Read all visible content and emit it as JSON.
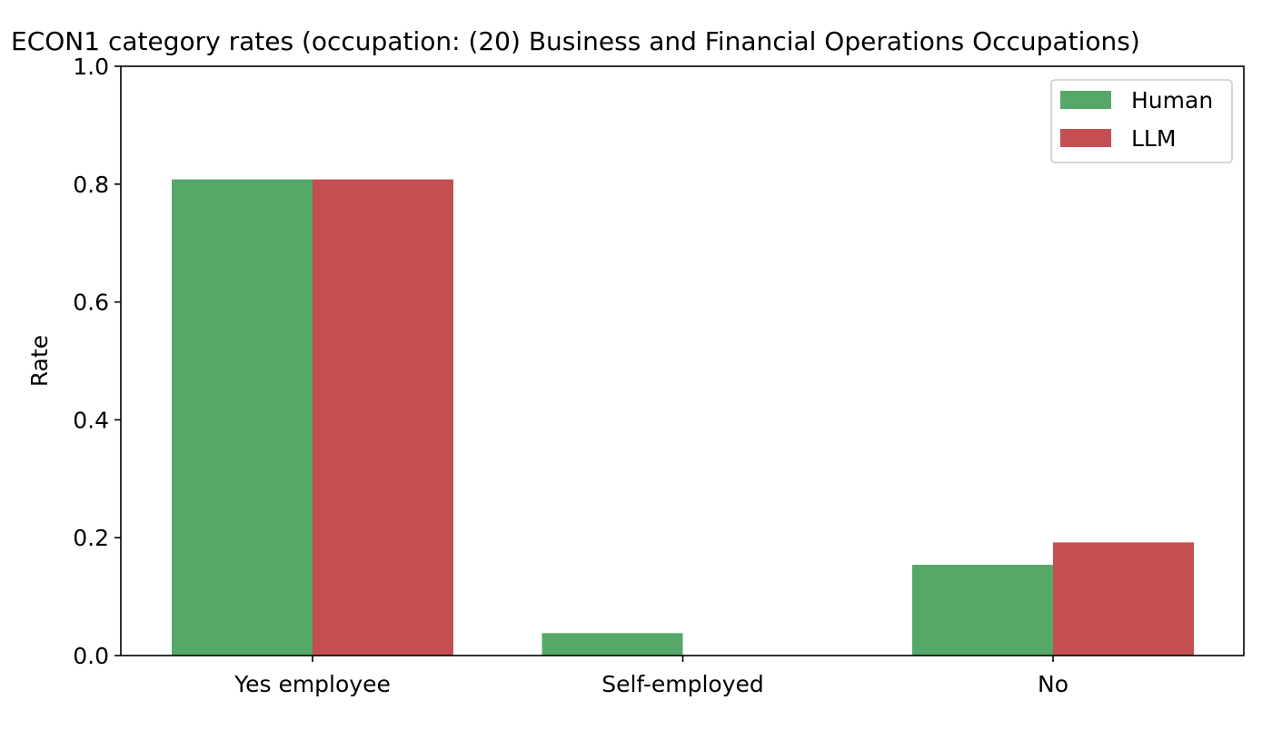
{
  "chart_data": {
    "type": "bar",
    "title": "ECON1 category rates (occupation: (20) Business and Financial Operations Occupations)",
    "xlabel": "",
    "ylabel": "Rate",
    "ylim": [
      0,
      1.0
    ],
    "yticks": [
      "0.0",
      "0.2",
      "0.4",
      "0.6",
      "0.8",
      "1.0"
    ],
    "categories": [
      "Yes employee",
      "Self-employed",
      "No"
    ],
    "series": [
      {
        "name": "Human",
        "color": "#55a868",
        "values": [
          0.808,
          0.038,
          0.154
        ]
      },
      {
        "name": "LLM",
        "color": "#c44e52",
        "values": [
          0.808,
          0.0,
          0.192
        ]
      }
    ],
    "grid": false,
    "legend_position": "top-right"
  }
}
